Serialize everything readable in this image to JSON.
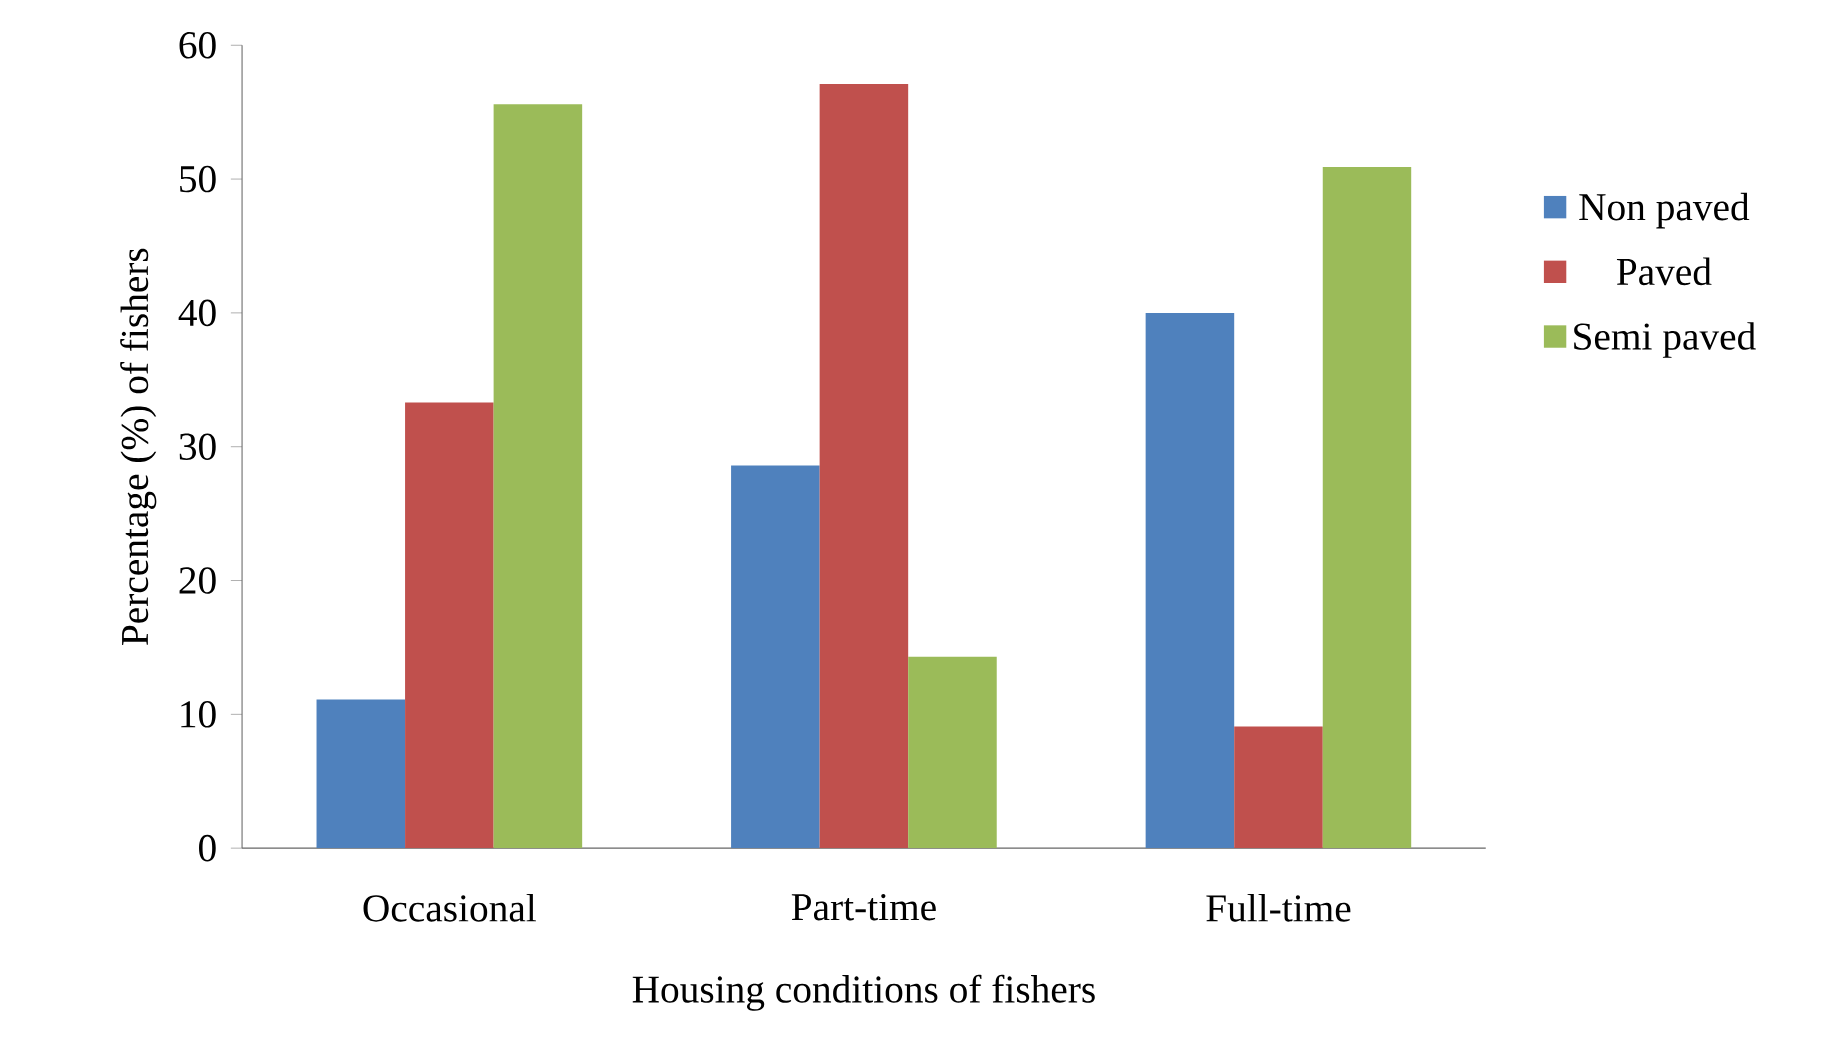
{
  "chart_data": {
    "type": "bar",
    "xlabel": "Housing conditions of fishers",
    "ylabel": "Percentage (%) of fishers",
    "categories": [
      "Occasional",
      "Part-time",
      "Full-time"
    ],
    "series": [
      {
        "name": "Non paved",
        "color": "#4f81bd",
        "values": [
          11.1,
          28.6,
          40.0
        ]
      },
      {
        "name": "Paved",
        "color": "#c0504d",
        "values": [
          33.3,
          57.1,
          9.1
        ]
      },
      {
        "name": "Semi paved",
        "color": "#9bbb59",
        "values": [
          55.6,
          14.3,
          50.9
        ]
      }
    ],
    "ylim": [
      0,
      60
    ],
    "yticks": [
      0,
      10,
      20,
      30,
      40,
      50,
      60
    ],
    "legend": "right"
  }
}
